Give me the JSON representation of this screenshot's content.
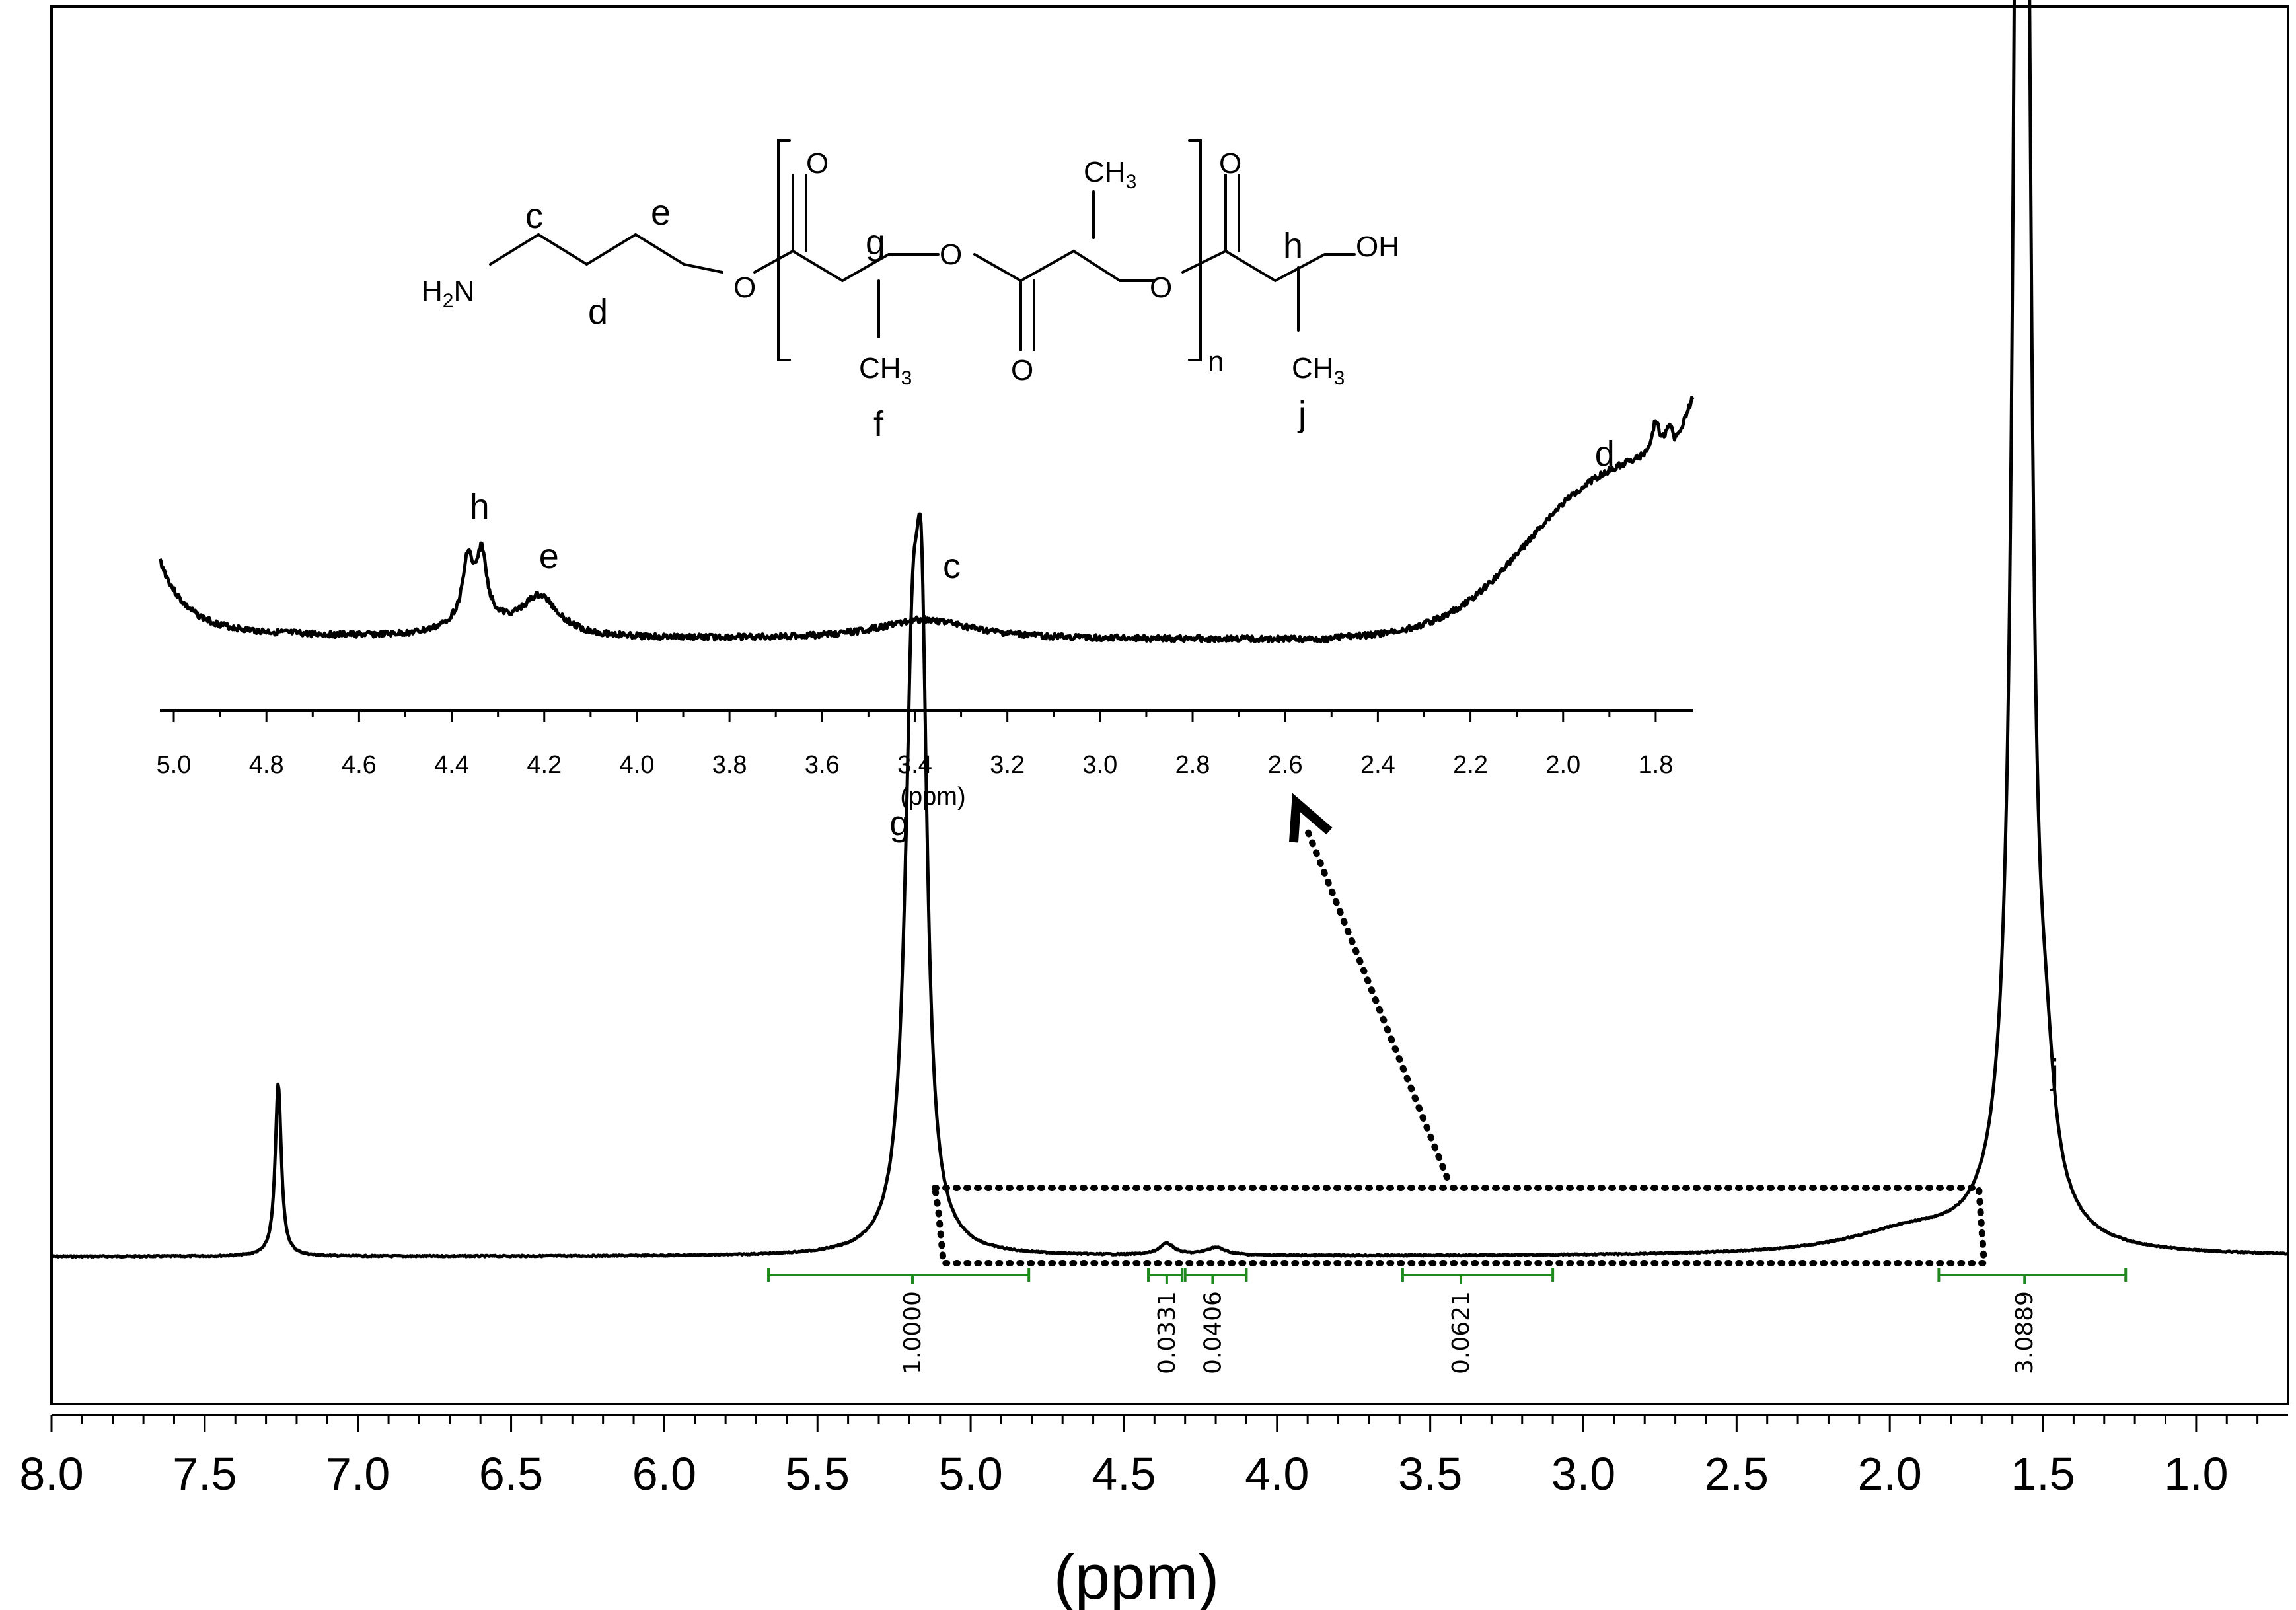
{
  "chart_data": {
    "type": "line",
    "xlabel": "(ppm)",
    "xlim": [
      8.0,
      0.7
    ],
    "x_reversed": true,
    "x_ticks": [
      "8.0",
      "7.5",
      "7.0",
      "6.5",
      "6.0",
      "5.5",
      "5.0",
      "4.5",
      "4.0",
      "3.5",
      "3.0",
      "2.5",
      "2.0",
      "1.5",
      "1.0"
    ],
    "x_tick_values": [
      8.0,
      7.5,
      7.0,
      6.5,
      6.0,
      5.5,
      5.0,
      4.5,
      4.0,
      3.5,
      3.0,
      2.5,
      2.0,
      1.5,
      1.0
    ],
    "ylim": [
      0,
      1.1
    ],
    "peaks": [
      {
        "x": 7.26,
        "height": 0.09,
        "width": 0.012
      },
      {
        "x": 5.19,
        "height": 0.27,
        "width": 0.03
      },
      {
        "x": 5.16,
        "height": 0.24,
        "width": 0.022
      },
      {
        "x": 1.583,
        "height": 0.62,
        "width": 0.018
      },
      {
        "x": 1.553,
        "height": 0.55,
        "width": 0.018
      },
      {
        "x": 1.57,
        "height": 0.12,
        "width": 0.06
      },
      {
        "x": 1.49,
        "height": 0.04,
        "width": 0.03
      },
      {
        "x": 4.36,
        "height": 0.006,
        "width": 0.03
      },
      {
        "x": 4.2,
        "height": 0.004,
        "width": 0.04
      },
      {
        "x": 1.93,
        "height": 0.012,
        "width": 0.25
      }
    ],
    "peak_labels": [
      {
        "text": "g",
        "x": 5.2,
        "y": 0.22
      },
      {
        "text": "f",
        "x": 1.39,
        "y": 0.66
      },
      {
        "text": "j",
        "x": 1.41,
        "y": 0.09
      }
    ],
    "integrals": [
      {
        "label": "1.0000",
        "from": 5.66,
        "to": 4.81,
        "center": 5.19
      },
      {
        "label": "0.0331",
        "from": 4.42,
        "to": 4.31,
        "center": 4.36
      },
      {
        "label": "0.0406",
        "from": 4.3,
        "to": 4.1,
        "center": 4.21
      },
      {
        "label": "0.0621",
        "from": 3.59,
        "to": 3.1,
        "center": 3.4
      },
      {
        "label": "3.0889",
        "from": 1.84,
        "to": 1.23,
        "center": 1.56
      }
    ],
    "inset": {
      "xlabel": "(ppm)",
      "xlim": [
        5.03,
        1.72
      ],
      "x_ticks": [
        "5.0",
        "4.8",
        "4.6",
        "4.4",
        "4.2",
        "4.0",
        "3.8",
        "3.6",
        "3.4",
        "3.2",
        "3.0",
        "2.8",
        "2.6",
        "2.4",
        "2.2",
        "2.0",
        "1.8"
      ],
      "x_tick_values": [
        5.0,
        4.8,
        4.6,
        4.4,
        4.2,
        4.0,
        3.8,
        3.6,
        3.4,
        3.2,
        3.0,
        2.8,
        2.6,
        2.4,
        2.2,
        2.0,
        1.8
      ],
      "peak_labels": [
        {
          "text": "h",
          "x": 4.34
        },
        {
          "text": "e",
          "x": 4.19
        },
        {
          "text": "c",
          "x": 3.32
        },
        {
          "text": "d",
          "x": 1.91
        }
      ]
    }
  },
  "structure": {
    "atoms": {
      "h2n": "H",
      "h2n_sub": "2",
      "h2n_rest": "N",
      "o1": "O",
      "o2": "O",
      "o3": "O",
      "o_carbonyl1": "O",
      "o_carbonyl2": "O",
      "o_carbonyl3": "O",
      "ch3_top": "CH",
      "ch3_top_sub": "3",
      "ch3_f": "CH",
      "ch3_f_sub": "3",
      "ch3_j": "CH",
      "ch3_j_sub": "3",
      "oh": "OH",
      "n": "n"
    },
    "labels": {
      "c": "c",
      "d": "d",
      "e": "e",
      "g": "g",
      "h": "h",
      "f": "f",
      "j": "j"
    }
  }
}
